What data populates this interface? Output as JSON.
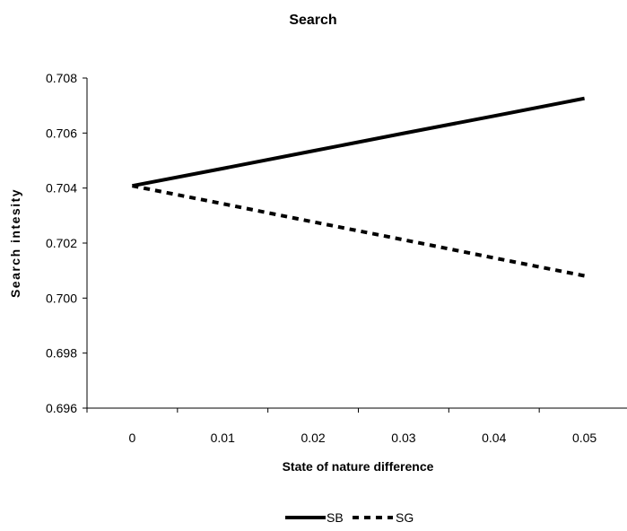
{
  "chart_data": {
    "type": "line",
    "title": "Search",
    "xlabel": "State of nature difference",
    "ylabel": "Search intesity",
    "categories": [
      "0",
      "0.01",
      "0.02",
      "0.03",
      "0.04",
      "0.05"
    ],
    "x": [
      0,
      0.01,
      0.02,
      0.03,
      0.04,
      0.05
    ],
    "series": [
      {
        "name": "SB",
        "style": "solid",
        "color": "#000000",
        "values": [
          0.70408,
          0.70471,
          0.70535,
          0.70599,
          0.70662,
          0.70726
        ]
      },
      {
        "name": "SG",
        "style": "dashed",
        "color": "#000000",
        "values": [
          0.70408,
          0.70343,
          0.70277,
          0.70212,
          0.70146,
          0.70081
        ]
      }
    ],
    "ylim": [
      0.696,
      0.708
    ],
    "yticks": [
      "0.696",
      "0.698",
      "0.700",
      "0.702",
      "0.704",
      "0.706",
      "0.708"
    ],
    "grid": false,
    "legend": "bottom"
  }
}
